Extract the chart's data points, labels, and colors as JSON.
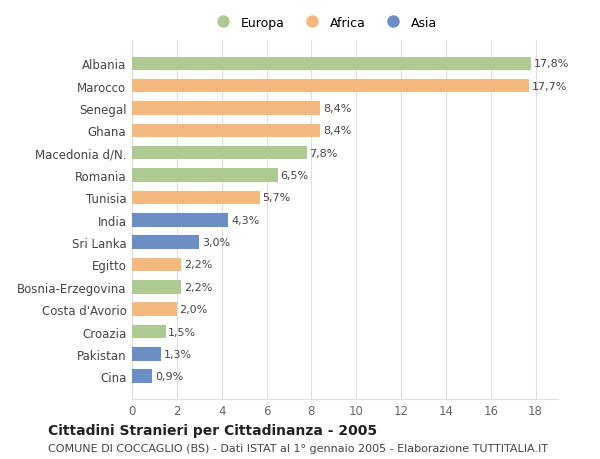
{
  "categories": [
    "Albania",
    "Marocco",
    "Senegal",
    "Ghana",
    "Macedonia d/N.",
    "Romania",
    "Tunisia",
    "India",
    "Sri Lanka",
    "Egitto",
    "Bosnia-Erzegovina",
    "Costa d'Avorio",
    "Croazia",
    "Pakistan",
    "Cina"
  ],
  "values": [
    17.8,
    17.7,
    8.4,
    8.4,
    7.8,
    6.5,
    5.7,
    4.3,
    3.0,
    2.2,
    2.2,
    2.0,
    1.5,
    1.3,
    0.9
  ],
  "labels": [
    "17,8%",
    "17,7%",
    "8,4%",
    "8,4%",
    "7,8%",
    "6,5%",
    "5,7%",
    "4,3%",
    "3,0%",
    "2,2%",
    "2,2%",
    "2,0%",
    "1,5%",
    "1,3%",
    "0,9%"
  ],
  "continents": [
    "Europa",
    "Africa",
    "Africa",
    "Africa",
    "Europa",
    "Europa",
    "Africa",
    "Asia",
    "Asia",
    "Africa",
    "Europa",
    "Africa",
    "Europa",
    "Asia",
    "Asia"
  ],
  "colors": {
    "Europa": "#aec992",
    "Africa": "#f5b97f",
    "Asia": "#6b8ec4"
  },
  "legend_labels": [
    "Europa",
    "Africa",
    "Asia"
  ],
  "title": "Cittadini Stranieri per Cittadinanza - 2005",
  "subtitle": "COMUNE DI COCCAGLIO (BS) - Dati ISTAT al 1° gennaio 2005 - Elaborazione TUTTITALIA.IT",
  "xlim": [
    0,
    19
  ],
  "xticks": [
    0,
    2,
    4,
    6,
    8,
    10,
    12,
    14,
    16,
    18
  ],
  "background_color": "#ffffff",
  "bar_height": 0.6,
  "grid_color": "#dddddd",
  "title_fontsize": 10,
  "subtitle_fontsize": 8,
  "label_fontsize": 8,
  "ytick_fontsize": 8.5,
  "xtick_fontsize": 8.5,
  "legend_fontsize": 9
}
